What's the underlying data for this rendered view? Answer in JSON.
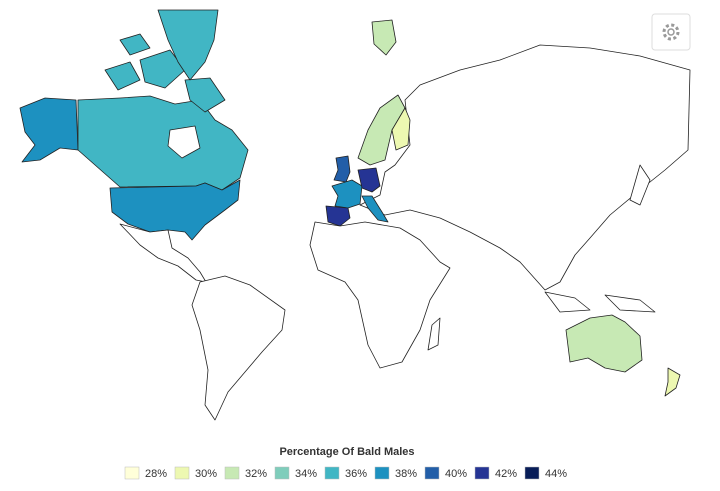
{
  "legend": {
    "title": "Percentage Of Bald Males",
    "items": [
      {
        "label": "28%",
        "color": "#ffffd9"
      },
      {
        "label": "30%",
        "color": "#edf8b1"
      },
      {
        "label": "32%",
        "color": "#c7e9b4"
      },
      {
        "label": "34%",
        "color": "#7fcdbb"
      },
      {
        "label": "36%",
        "color": "#41b6c4"
      },
      {
        "label": "38%",
        "color": "#1d91c0"
      },
      {
        "label": "40%",
        "color": "#225ea8"
      },
      {
        "label": "42%",
        "color": "#253494"
      },
      {
        "label": "44%",
        "color": "#081d58"
      }
    ]
  }
}
